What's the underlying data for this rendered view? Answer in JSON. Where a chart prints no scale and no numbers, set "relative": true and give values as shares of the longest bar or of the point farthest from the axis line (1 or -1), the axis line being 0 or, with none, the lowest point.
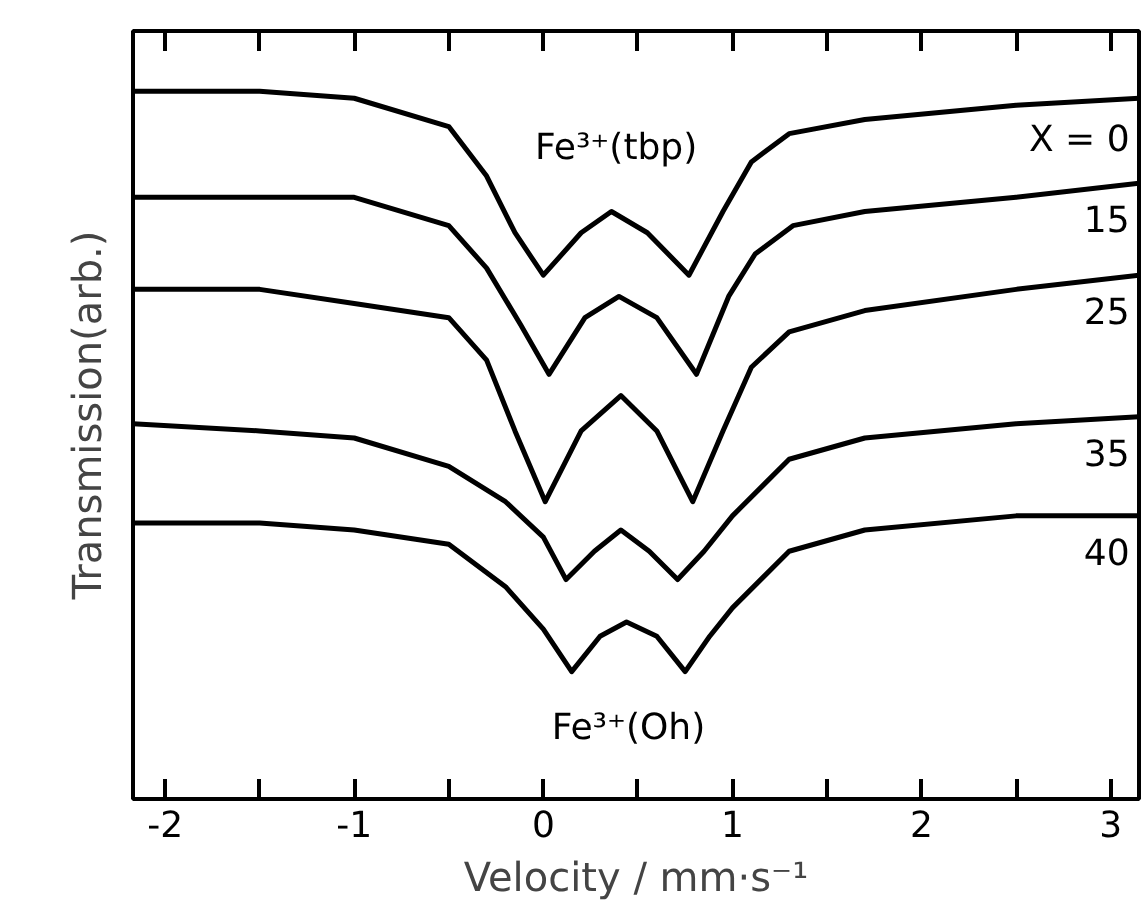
{
  "chart_data": {
    "type": "line",
    "relative": true,
    "xlabel": "Velocity / mm·s⁻¹",
    "ylabel": "Transmission(arb.)",
    "xlim": [
      -2.17,
      3.15
    ],
    "xticks": [
      -2,
      {
        "value": -1.5,
        "label": null
      },
      -1,
      {
        "value": -0.5,
        "label": null
      },
      0,
      {
        "value": 0.5,
        "label": null
      },
      1,
      {
        "value": 1.5,
        "label": null
      },
      2,
      {
        "value": 2.5,
        "label": null
      },
      3
    ],
    "tick_labels": "x",
    "grid": false,
    "legend": false,
    "marker": "none",
    "line_style": "solid",
    "annotations": [
      "Fe³⁺(tbp)",
      "Fe³⁺(Oh)"
    ],
    "series": [
      {
        "name": "X = 0",
        "color": "#000000",
        "x": [
          -2.17,
          -1.5,
          -1.0,
          -0.5,
          -0.3,
          -0.15,
          0.0,
          0.2,
          0.36,
          0.55,
          0.77,
          0.95,
          1.1,
          1.3,
          1.7,
          2.5,
          3.15
        ],
        "values": [
          1.0,
          1.0,
          0.99,
          0.95,
          0.88,
          0.8,
          0.74,
          0.8,
          0.83,
          0.8,
          0.74,
          0.83,
          0.9,
          0.94,
          0.96,
          0.98,
          0.99
        ]
      },
      {
        "name": "15",
        "color": "#000000",
        "x": [
          -2.17,
          -1.5,
          -1.0,
          -0.5,
          -0.3,
          -0.12,
          0.03,
          0.22,
          0.4,
          0.6,
          0.81,
          0.98,
          1.12,
          1.32,
          1.7,
          2.5,
          3.15
        ],
        "values": [
          0.85,
          0.85,
          0.85,
          0.81,
          0.75,
          0.67,
          0.6,
          0.68,
          0.71,
          0.68,
          0.6,
          0.71,
          0.77,
          0.81,
          0.83,
          0.85,
          0.87
        ]
      },
      {
        "name": "25",
        "color": "#000000",
        "x": [
          -2.17,
          -1.5,
          -1.0,
          -0.5,
          -0.3,
          -0.15,
          0.01,
          0.2,
          0.41,
          0.6,
          0.79,
          0.95,
          1.1,
          1.3,
          1.7,
          2.5,
          3.15
        ],
        "values": [
          0.72,
          0.72,
          0.7,
          0.68,
          0.62,
          0.52,
          0.42,
          0.52,
          0.57,
          0.52,
          0.42,
          0.52,
          0.61,
          0.66,
          0.69,
          0.72,
          0.74
        ]
      },
      {
        "name": "35",
        "color": "#000000",
        "x": [
          -2.17,
          -1.5,
          -1.0,
          -0.5,
          -0.2,
          0.0,
          0.12,
          0.27,
          0.41,
          0.56,
          0.71,
          0.85,
          1.0,
          1.3,
          1.7,
          2.5,
          3.15
        ],
        "values": [
          0.53,
          0.52,
          0.51,
          0.47,
          0.42,
          0.37,
          0.31,
          0.35,
          0.38,
          0.35,
          0.31,
          0.35,
          0.4,
          0.48,
          0.51,
          0.53,
          0.54
        ]
      },
      {
        "name": "40",
        "color": "#000000",
        "x": [
          -2.17,
          -1.5,
          -1.0,
          -0.5,
          -0.2,
          0.0,
          0.15,
          0.3,
          0.44,
          0.6,
          0.75,
          0.88,
          1.0,
          1.3,
          1.7,
          2.5,
          3.15
        ],
        "values": [
          0.39,
          0.39,
          0.38,
          0.36,
          0.3,
          0.24,
          0.18,
          0.23,
          0.25,
          0.23,
          0.18,
          0.23,
          0.27,
          0.35,
          0.38,
          0.4,
          0.4
        ]
      }
    ]
  }
}
